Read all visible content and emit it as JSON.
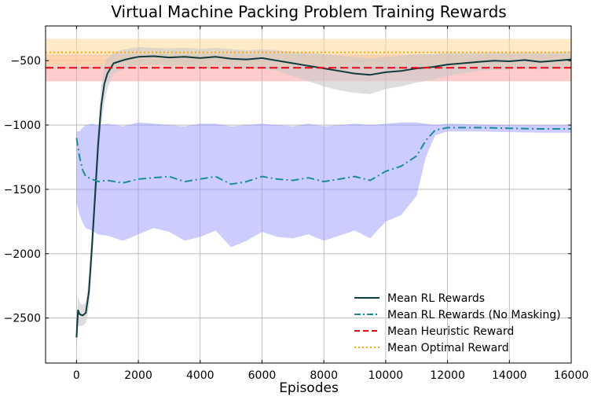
{
  "chart_data": {
    "type": "line",
    "title": "Virtual Machine Packing Problem Training Rewards",
    "xlabel": "Episodes",
    "ylabel": "",
    "xlim": [
      -1000,
      16000
    ],
    "ylim": [
      -2850,
      -230
    ],
    "xticks": [
      0,
      2000,
      4000,
      6000,
      8000,
      10000,
      12000,
      14000,
      16000
    ],
    "yticks": [
      -2500,
      -2000,
      -1500,
      -1000,
      -500
    ],
    "grid": true,
    "legend_position": "lower-right",
    "colors": {
      "rl": "#0d3b3e",
      "rl_band": "#c8c8c8",
      "no_mask": "#1a8f9c",
      "no_mask_band": "#9999ff",
      "heuristic": "#e8000b",
      "heuristic_band": "#ff9999",
      "optimal": "#ffa500",
      "optimal_band": "#ffd999"
    },
    "series": [
      {
        "name": "Mean RL Rewards",
        "style": "solid",
        "x": [
          0,
          50,
          100,
          200,
          300,
          400,
          500,
          600,
          700,
          800,
          900,
          1000,
          1100,
          1200,
          1400,
          1600,
          1800,
          2000,
          2500,
          3000,
          3500,
          4000,
          4500,
          5000,
          5500,
          6000,
          6500,
          7000,
          7500,
          8000,
          8500,
          9000,
          9500,
          10000,
          10500,
          11000,
          11500,
          12000,
          12500,
          13000,
          13500,
          14000,
          14500,
          15000,
          15500,
          16000
        ],
        "y": [
          -2650,
          -2440,
          -2470,
          -2480,
          -2460,
          -2300,
          -1950,
          -1550,
          -1150,
          -850,
          -680,
          -600,
          -560,
          -520,
          -505,
          -490,
          -480,
          -470,
          -465,
          -475,
          -470,
          -480,
          -470,
          -485,
          -490,
          -480,
          -500,
          -520,
          -540,
          -560,
          -580,
          -600,
          -610,
          -590,
          -580,
          -560,
          -550,
          -530,
          -520,
          -510,
          -500,
          -505,
          -495,
          -510,
          -500,
          -490
        ],
        "band_low": [
          -2720,
          -2560,
          -2560,
          -2560,
          -2540,
          -2420,
          -2100,
          -1700,
          -1300,
          -1000,
          -820,
          -720,
          -650,
          -600,
          -580,
          -560,
          -545,
          -540,
          -530,
          -540,
          -540,
          -545,
          -540,
          -555,
          -560,
          -560,
          -580,
          -620,
          -660,
          -700,
          -730,
          -750,
          -760,
          -720,
          -700,
          -670,
          -650,
          -620,
          -600,
          -580,
          -570,
          -570,
          -560,
          -570,
          -560,
          -550
        ],
        "band_high": [
          -2580,
          -2320,
          -2380,
          -2400,
          -2380,
          -2180,
          -1800,
          -1400,
          -1000,
          -700,
          -540,
          -480,
          -460,
          -440,
          -420,
          -410,
          -400,
          -395,
          -400,
          -405,
          -400,
          -410,
          -400,
          -410,
          -420,
          -410,
          -420,
          -430,
          -440,
          -450,
          -460,
          -470,
          -480,
          -470,
          -460,
          -450,
          -450,
          -440,
          -440,
          -440,
          -430,
          -440,
          -430,
          -440,
          -430,
          -430
        ]
      },
      {
        "name": "Mean RL Rewards (No Masking)",
        "style": "dashdot",
        "x": [
          0,
          100,
          200,
          300,
          500,
          700,
          1000,
          1500,
          2000,
          2500,
          3000,
          3500,
          4000,
          4500,
          5000,
          5500,
          6000,
          6500,
          7000,
          7500,
          8000,
          8500,
          9000,
          9500,
          10000,
          10500,
          11000,
          11300,
          11600,
          12000,
          13000,
          14000,
          15000,
          16000
        ],
        "y": [
          -1100,
          -1250,
          -1350,
          -1400,
          -1420,
          -1440,
          -1430,
          -1450,
          -1420,
          -1410,
          -1400,
          -1440,
          -1420,
          -1400,
          -1460,
          -1440,
          -1400,
          -1420,
          -1430,
          -1410,
          -1440,
          -1420,
          -1400,
          -1430,
          -1360,
          -1320,
          -1240,
          -1120,
          -1040,
          -1020,
          -1020,
          -1025,
          -1030,
          -1030
        ],
        "band_low": [
          -1600,
          -1700,
          -1760,
          -1800,
          -1820,
          -1850,
          -1860,
          -1900,
          -1850,
          -1800,
          -1830,
          -1900,
          -1870,
          -1820,
          -1950,
          -1900,
          -1830,
          -1870,
          -1880,
          -1850,
          -1900,
          -1860,
          -1820,
          -1880,
          -1750,
          -1700,
          -1550,
          -1250,
          -1080,
          -1050,
          -1050,
          -1055,
          -1060,
          -1060
        ],
        "band_high": [
          -1050,
          -1050,
          -1020,
          -1000,
          -990,
          -1000,
          -990,
          -1010,
          -980,
          -990,
          -1000,
          -1010,
          -990,
          -990,
          -1010,
          -1000,
          -990,
          -1000,
          -1010,
          -990,
          -1010,
          -1000,
          -990,
          -1000,
          -990,
          -980,
          -980,
          -990,
          -1000,
          -990,
          -995,
          -1000,
          -1000,
          -1000
        ]
      }
    ],
    "reference_lines": [
      {
        "name": "Mean Heuristic Reward",
        "style": "dashed",
        "y": -555,
        "band": [
          -660,
          -450
        ]
      },
      {
        "name": "Mean Optimal Reward",
        "style": "dotted",
        "y": -435,
        "band": [
          -540,
          -330
        ]
      }
    ]
  }
}
